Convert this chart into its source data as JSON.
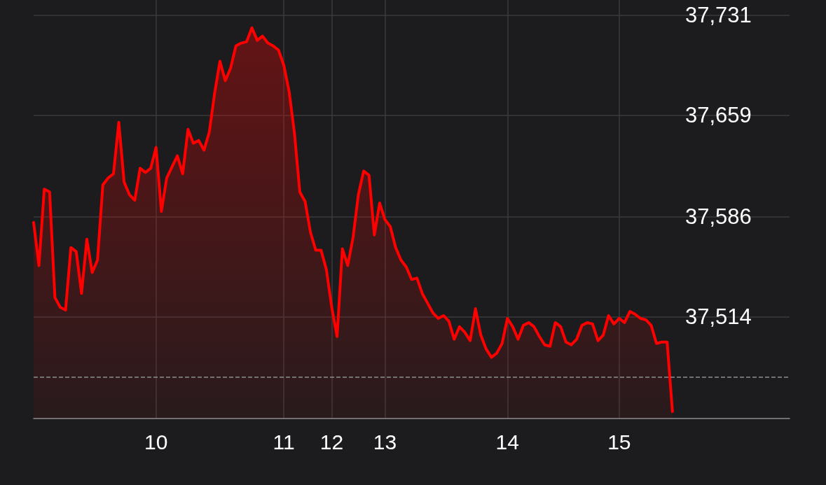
{
  "chart_data": {
    "type": "area",
    "categories": [
      null,
      null,
      null,
      null,
      null,
      null,
      null,
      null,
      null,
      null,
      null,
      null,
      null,
      null,
      null,
      null,
      null,
      null,
      null,
      null,
      null,
      null,
      null,
      "10",
      null,
      null,
      null,
      null,
      null,
      null,
      null,
      null,
      null,
      null,
      null,
      null,
      null,
      null,
      null,
      null,
      null,
      null,
      null,
      null,
      null,
      null,
      null,
      "11",
      null,
      null,
      null,
      null,
      null,
      null,
      null,
      null,
      "12",
      null,
      null,
      null,
      null,
      null,
      null,
      null,
      null,
      null,
      "13",
      null,
      null,
      null,
      null,
      null,
      null,
      null,
      null,
      null,
      null,
      null,
      null,
      null,
      null,
      null,
      null,
      null,
      null,
      null,
      null,
      null,
      null,
      "14",
      null,
      null,
      null,
      null,
      null,
      null,
      null,
      null,
      null,
      null,
      null,
      null,
      null,
      null,
      null,
      null,
      null,
      null,
      null,
      null,
      "15",
      null,
      null,
      null,
      null,
      null,
      null,
      null,
      null,
      null,
      null,
      null,
      null,
      null,
      null,
      null,
      null,
      null,
      null,
      null,
      null,
      null,
      null,
      null,
      null,
      null,
      null,
      null,
      null,
      null,
      null,
      null,
      null
    ],
    "series": [
      {
        "color": "#ff0000",
        "values": [
          37582,
          37551,
          37606,
          37604,
          37528,
          37521,
          37519,
          37564,
          37561,
          37531,
          37570,
          37546,
          37555,
          37609,
          37614,
          37617,
          37654,
          37611,
          37602,
          37598,
          37621,
          37618,
          37621,
          37636,
          37590,
          37614,
          37622,
          37630,
          37617,
          37649,
          37639,
          37641,
          37634,
          37647,
          37675,
          37698,
          37684,
          37693,
          37709,
          37711,
          37712,
          37722,
          37713,
          37716,
          37711,
          37709,
          37706,
          37695,
          37676,
          37646,
          37604,
          37597,
          37575,
          37562,
          37562,
          37548,
          37521,
          37500,
          37563,
          37551,
          37571,
          37602,
          37619,
          37616,
          37573,
          37596,
          37584,
          37579,
          37564,
          37555,
          37550,
          37541,
          37542,
          37531,
          37524,
          37517,
          37513,
          37515,
          37511,
          37498,
          37507,
          37503,
          37497,
          37520,
          37501,
          37491,
          37485,
          37488,
          37495,
          37513,
          37507,
          37498,
          37508,
          37510,
          37507,
          37500,
          37494,
          37493,
          37510,
          37507,
          37496,
          37494,
          37498,
          37508,
          37510,
          37509,
          37497,
          37501,
          37515,
          37509,
          37513,
          37510,
          37518,
          37516,
          37513,
          37512,
          37508,
          37495,
          37496,
          37496,
          37446,
          null,
          null,
          null,
          null,
          null,
          null,
          null,
          null,
          null,
          null,
          null,
          null,
          null,
          null,
          null,
          null,
          null,
          null,
          null,
          null,
          null,
          null
        ]
      }
    ],
    "ylim": [
      37441,
      37742
    ],
    "yticks": [
      {
        "value": 37514,
        "label": "37,514"
      },
      {
        "value": 37586,
        "label": "37,586"
      },
      {
        "value": 37659,
        "label": "37,659"
      },
      {
        "value": 37731,
        "label": "37,731"
      }
    ],
    "grid": true,
    "marker": "none",
    "line_style": "solid",
    "ref_lines": [
      {
        "axis": "y",
        "value": 37471,
        "color": "#8e8e93",
        "line_style": "dashed"
      }
    ]
  }
}
